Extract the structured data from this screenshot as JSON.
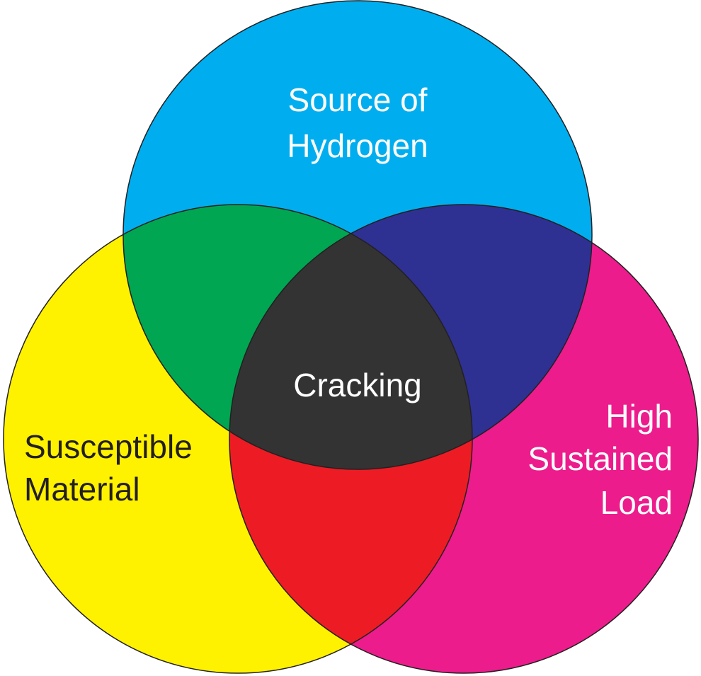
{
  "sets": [
    {
      "label": [
        "Source of",
        "Hydrogen"
      ]
    },
    {
      "label": [
        "Susceptible",
        "Material"
      ]
    },
    {
      "label": [
        "High",
        "Sustained",
        "Load"
      ]
    }
  ],
  "center": {
    "label": "Cracking"
  }
}
